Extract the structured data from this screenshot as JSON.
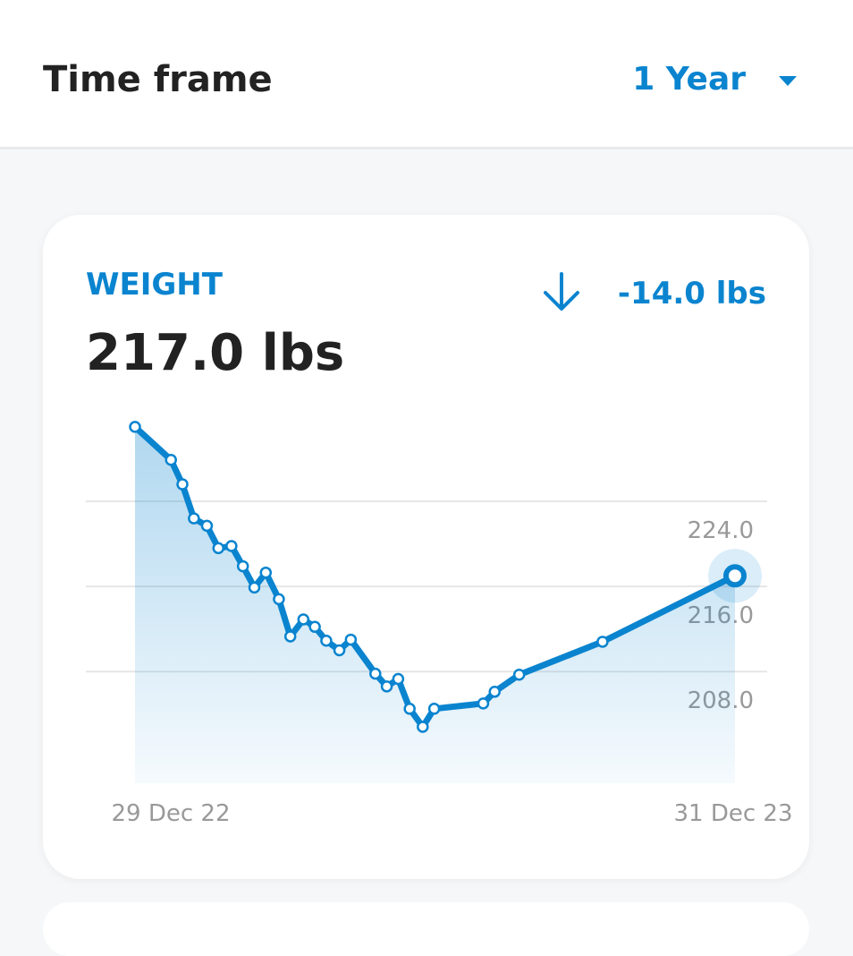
{
  "header": {
    "title": "Time frame",
    "timeframe": "1 Year"
  },
  "card": {
    "label": "WEIGHT",
    "current": "217.0 lbs",
    "change": "-14.0 lbs"
  },
  "chart_data": {
    "type": "area",
    "x": [
      0,
      22,
      29,
      36,
      44,
      51,
      59,
      66,
      73,
      80,
      88,
      95,
      103,
      110,
      117,
      125,
      132,
      147,
      154,
      161,
      168,
      176,
      183,
      213,
      220,
      235,
      286,
      367
    ],
    "values": [
      231,
      227.9,
      225.6,
      222.4,
      221.7,
      219.6,
      219.8,
      217.9,
      215.9,
      217.3,
      214.8,
      211.3,
      212.9,
      212.2,
      210.9,
      210.0,
      211.0,
      207.8,
      206.6,
      207.3,
      204.5,
      202.8,
      204.5,
      205.0,
      206.1,
      207.7,
      210.8,
      217.0
    ],
    "color": "#0a84cf",
    "xlim": [
      0,
      367
    ],
    "xticks": [
      {
        "value": 0,
        "label": "29 Dec 22"
      },
      {
        "value": 367,
        "label": "31 Dec 23"
      }
    ],
    "ylim": [
      197.5,
      232
    ],
    "yticks": [
      {
        "value": 208,
        "label": "208.0"
      },
      {
        "value": 216,
        "label": "216.0"
      },
      {
        "value": 224,
        "label": "224.0"
      }
    ],
    "grid": true
  }
}
